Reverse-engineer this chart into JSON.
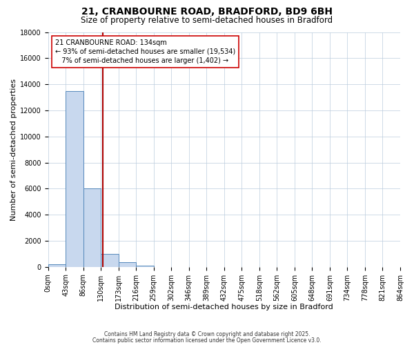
{
  "title_line1": "21, CRANBOURNE ROAD, BRADFORD, BD9 6BH",
  "title_line2": "Size of property relative to semi-detached houses in Bradford",
  "xlabel": "Distribution of semi-detached houses by size in Bradford",
  "ylabel": "Number of semi-detached properties",
  "bin_labels": [
    "0sqm",
    "43sqm",
    "86sqm",
    "130sqm",
    "173sqm",
    "216sqm",
    "259sqm",
    "302sqm",
    "346sqm",
    "389sqm",
    "432sqm",
    "475sqm",
    "518sqm",
    "562sqm",
    "605sqm",
    "648sqm",
    "691sqm",
    "734sqm",
    "778sqm",
    "821sqm",
    "864sqm"
  ],
  "bar_values": [
    200,
    13500,
    6000,
    1000,
    350,
    100,
    0,
    0,
    0,
    0,
    0,
    0,
    0,
    0,
    0,
    0,
    0,
    0,
    0,
    0
  ],
  "bar_color": "#c8d8ee",
  "bar_edge_color": "#5588bb",
  "grid_color": "#bbccdd",
  "background_color": "#ffffff",
  "vline_color": "#aa0000",
  "annotation_text": "21 CRANBOURNE ROAD: 134sqm\n← 93% of semi-detached houses are smaller (19,534)\n   7% of semi-detached houses are larger (1,402) →",
  "annotation_box_color": "#ffffff",
  "annotation_box_edge": "#cc0000",
  "ylim": [
    0,
    18000
  ],
  "yticks": [
    0,
    2000,
    4000,
    6000,
    8000,
    10000,
    12000,
    14000,
    16000,
    18000
  ],
  "footnote1": "Contains HM Land Registry data © Crown copyright and database right 2025.",
  "footnote2": "Contains public sector information licensed under the Open Government Licence v3.0.",
  "title_fontsize": 10,
  "subtitle_fontsize": 8.5,
  "tick_fontsize": 7,
  "label_fontsize": 8,
  "annot_fontsize": 7
}
